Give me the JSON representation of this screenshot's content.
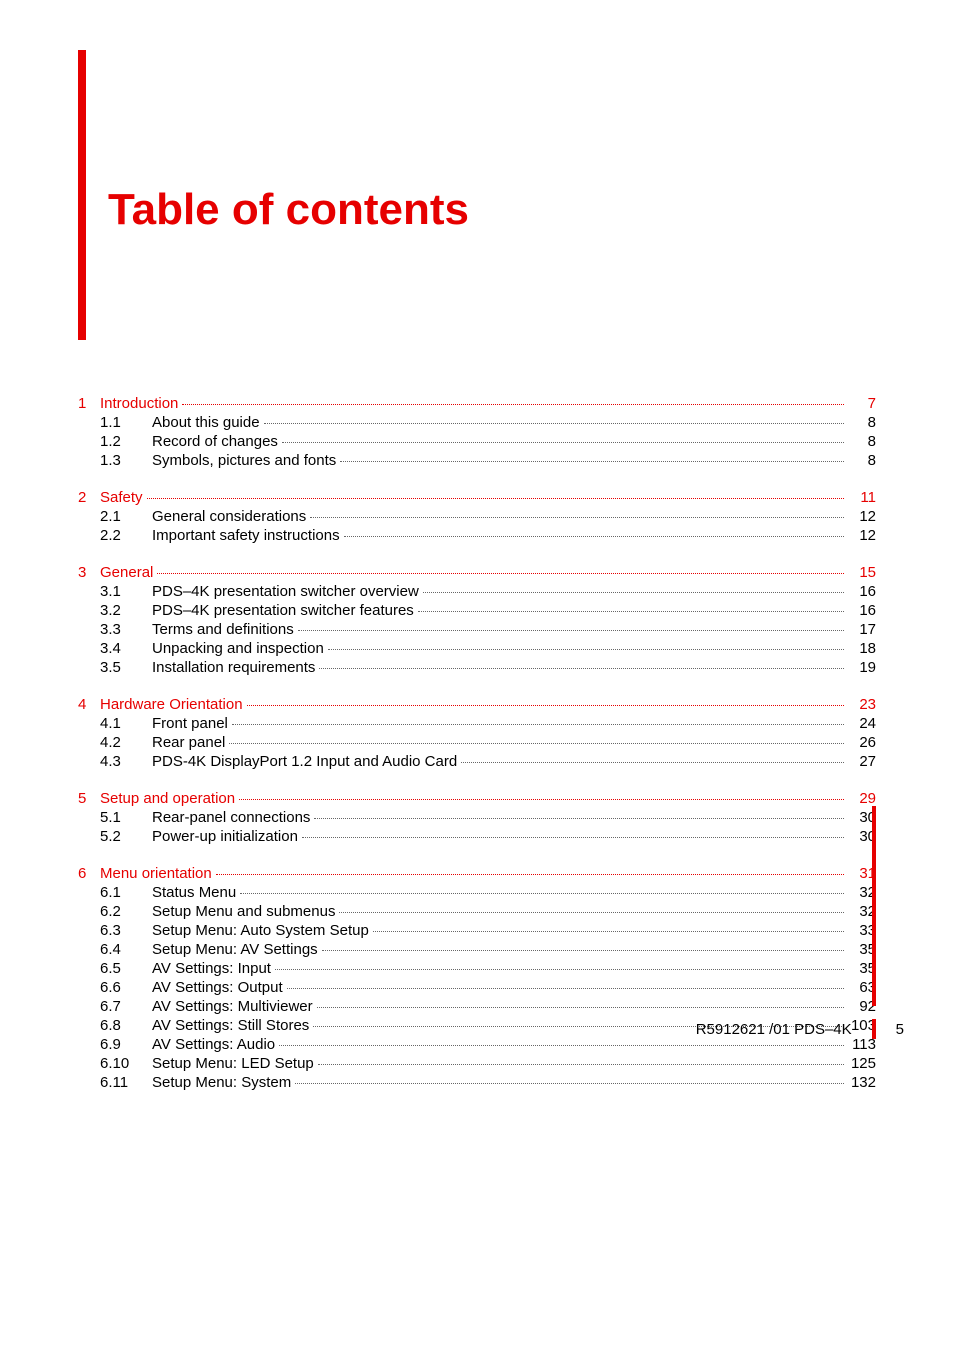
{
  "title": "Table of contents",
  "title_color": "#e60000",
  "bar_color": "#e60000",
  "text_color": "#000000",
  "leader_color_chapter": "#e60000",
  "leader_color_sub": "#666666",
  "footer": {
    "doc_ref": "R5912621 /01 PDS–4K",
    "page_num": "5"
  },
  "chapters": [
    {
      "num": "1",
      "title": "Introduction",
      "page": "7",
      "subs": [
        {
          "num": "1.1",
          "title": "About this guide",
          "page": "8"
        },
        {
          "num": "1.2",
          "title": "Record of changes",
          "page": "8"
        },
        {
          "num": "1.3",
          "title": "Symbols, pictures and fonts",
          "page": "8"
        }
      ]
    },
    {
      "num": "2",
      "title": "Safety",
      "page": "11",
      "subs": [
        {
          "num": "2.1",
          "title": "General considerations",
          "page": "12"
        },
        {
          "num": "2.2",
          "title": "Important safety instructions",
          "page": "12"
        }
      ]
    },
    {
      "num": "3",
      "title": "General",
      "page": "15",
      "subs": [
        {
          "num": "3.1",
          "title": "PDS–4K presentation switcher overview",
          "page": "16"
        },
        {
          "num": "3.2",
          "title": "PDS–4K presentation switcher features",
          "page": "16"
        },
        {
          "num": "3.3",
          "title": "Terms and definitions",
          "page": "17"
        },
        {
          "num": "3.4",
          "title": "Unpacking and inspection",
          "page": "18"
        },
        {
          "num": "3.5",
          "title": "Installation requirements",
          "page": "19"
        }
      ]
    },
    {
      "num": "4",
      "title": "Hardware Orientation",
      "page": "23",
      "subs": [
        {
          "num": "4.1",
          "title": "Front panel",
          "page": "24"
        },
        {
          "num": "4.2",
          "title": "Rear panel",
          "page": "26"
        },
        {
          "num": "4.3",
          "title": "PDS-4K DisplayPort 1.2 Input and Audio Card",
          "page": "27"
        }
      ]
    },
    {
      "num": "5",
      "title": "Setup and operation",
      "page": "29",
      "subs": [
        {
          "num": "5.1",
          "title": "Rear-panel connections",
          "page": "30"
        },
        {
          "num": "5.2",
          "title": "Power-up initialization",
          "page": "30"
        }
      ]
    },
    {
      "num": "6",
      "title": "Menu orientation",
      "page": "31",
      "subs": [
        {
          "num": "6.1",
          "title": "Status Menu",
          "page": "32"
        },
        {
          "num": "6.2",
          "title": "Setup Menu and submenus",
          "page": "32"
        },
        {
          "num": "6.3",
          "title": "Setup Menu: Auto System Setup",
          "page": "33"
        },
        {
          "num": "6.4",
          "title": "Setup Menu: AV Settings",
          "page": "35"
        },
        {
          "num": "6.5",
          "title": "AV Settings: Input",
          "page": "35"
        },
        {
          "num": "6.6",
          "title": "AV Settings: Output",
          "page": "63"
        },
        {
          "num": "6.7",
          "title": "AV Settings: Multiviewer",
          "page": "92"
        },
        {
          "num": "6.8",
          "title": "AV Settings: Still Stores",
          "page": "103"
        },
        {
          "num": "6.9",
          "title": "AV Settings: Audio",
          "page": "113"
        },
        {
          "num": "6.10",
          "title": "Setup Menu: LED Setup",
          "page": "125"
        },
        {
          "num": "6.11",
          "title": "Setup Menu: System",
          "page": "132"
        }
      ]
    }
  ]
}
